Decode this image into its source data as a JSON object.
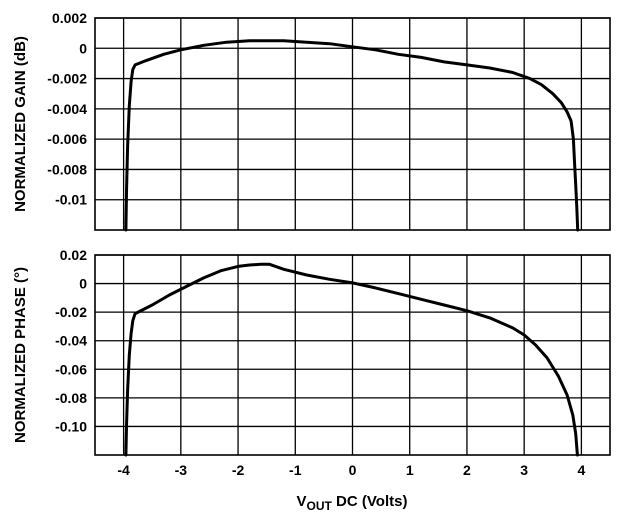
{
  "chart_data": [
    {
      "type": "line",
      "ylabel": "NORMALIZED GAIN (dB)",
      "xlabel": "",
      "xlim": [
        -4.5,
        4.5
      ],
      "ylim": [
        -0.012,
        0.002
      ],
      "x_ticks": [],
      "y_ticks": [
        "0.002",
        "0",
        "-0.002",
        "-0.004",
        "-0.006",
        "-0.008",
        "-0.01"
      ],
      "y_tick_values": [
        0.002,
        0,
        -0.002,
        -0.004,
        -0.006,
        -0.008,
        -0.01
      ],
      "grid": true,
      "series": [
        {
          "color": "#000000",
          "x": [
            -3.96,
            -3.95,
            -3.93,
            -3.9,
            -3.87,
            -3.84,
            -3.8,
            -3.6,
            -3.3,
            -3.0,
            -2.6,
            -2.2,
            -1.8,
            -1.5,
            -1.2,
            -0.8,
            -0.4,
            0.0,
            0.4,
            0.8,
            1.2,
            1.6,
            2.0,
            2.4,
            2.8,
            3.1,
            3.3,
            3.5,
            3.65,
            3.75,
            3.82,
            3.86,
            3.88,
            3.9,
            3.92,
            3.935
          ],
          "y": [
            -0.012,
            -0.0095,
            -0.0065,
            -0.0038,
            -0.0022,
            -0.0014,
            -0.0011,
            -0.0008,
            -0.0004,
            -0.0001,
            0.0002,
            0.0004,
            0.0005,
            0.0005,
            0.0005,
            0.0004,
            0.0003,
            0.0001,
            -0.0001,
            -0.0004,
            -0.0006,
            -0.0009,
            -0.0011,
            -0.0013,
            -0.0016,
            -0.002,
            -0.0024,
            -0.003,
            -0.0036,
            -0.0042,
            -0.0048,
            -0.006,
            -0.0075,
            -0.009,
            -0.0105,
            -0.012
          ]
        }
      ]
    },
    {
      "type": "line",
      "ylabel": "NORMALIZED PHASE (°)",
      "xlabel": "VOUT DC (Volts)",
      "xlabel_main": "V",
      "xlabel_sub": "OUT",
      "xlabel_rest": " DC (Volts)",
      "xlim": [
        -4.5,
        4.5
      ],
      "ylim": [
        -0.12,
        0.02
      ],
      "x_ticks": [
        "-4",
        "-3",
        "-2",
        "-1",
        "0",
        "1",
        "2",
        "3",
        "4"
      ],
      "x_tick_values": [
        -4,
        -3,
        -2,
        -1,
        0,
        1,
        2,
        3,
        4
      ],
      "y_ticks": [
        "0.02",
        "0",
        "-0.02",
        "-0.04",
        "-0.06",
        "-0.08",
        "-0.10"
      ],
      "y_tick_values": [
        0.02,
        0,
        -0.02,
        -0.04,
        -0.06,
        -0.08,
        -0.1
      ],
      "grid": true,
      "series": [
        {
          "color": "#000000",
          "x": [
            -3.96,
            -3.95,
            -3.93,
            -3.9,
            -3.87,
            -3.84,
            -3.8,
            -3.5,
            -3.2,
            -2.9,
            -2.6,
            -2.3,
            -2.0,
            -1.8,
            -1.6,
            -1.45,
            -1.2,
            -0.8,
            -0.4,
            0.0,
            0.4,
            0.8,
            1.2,
            1.6,
            2.0,
            2.4,
            2.8,
            3.0,
            3.2,
            3.4,
            3.6,
            3.75,
            3.85,
            3.9,
            3.93
          ],
          "y": [
            -0.12,
            -0.1,
            -0.075,
            -0.05,
            -0.035,
            -0.026,
            -0.021,
            -0.015,
            -0.008,
            -0.002,
            0.004,
            0.009,
            0.012,
            0.013,
            0.0135,
            0.0135,
            0.01,
            0.006,
            0.003,
            0.0005,
            -0.003,
            -0.007,
            -0.011,
            -0.015,
            -0.019,
            -0.024,
            -0.031,
            -0.036,
            -0.043,
            -0.052,
            -0.065,
            -0.078,
            -0.092,
            -0.105,
            -0.12
          ]
        }
      ]
    }
  ]
}
